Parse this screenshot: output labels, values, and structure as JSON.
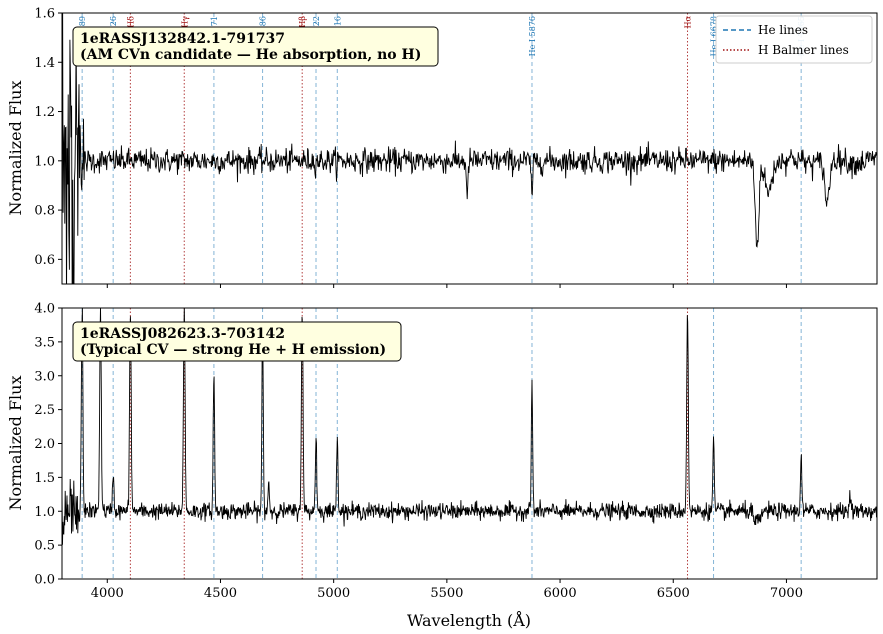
{
  "chart_data": [
    {
      "type": "line",
      "panel": "top",
      "title": "",
      "xlabel": "",
      "ylabel": "Normalized Flux",
      "xlim": [
        3800,
        7400
      ],
      "ylim": [
        0.5,
        1.6
      ],
      "yticks": [
        "0.6",
        "0.8",
        "1.0",
        "1.2",
        "1.4",
        "1.6"
      ],
      "ytick_values": [
        0.6,
        0.8,
        1.0,
        1.2,
        1.4,
        1.6
      ],
      "grid": false,
      "annotation": [
        "1eRASSJ132842.1-791737",
        "(AM CVn candidate — He absorption, no H)"
      ],
      "legend": {
        "placement": "top-right",
        "entries": [
          {
            "label": "He lines",
            "style": "dashed",
            "color": "#1f77b4"
          },
          {
            "label": "H Balmer lines",
            "style": "dotted",
            "color": "#a01010"
          }
        ]
      },
      "line_labels": [
        {
          "x": 3889,
          "text": "He I 3889",
          "kind": "He"
        },
        {
          "x": 4026,
          "text": "He I 4026",
          "kind": "He"
        },
        {
          "x": 4102,
          "text": "Hδ",
          "kind": "H"
        },
        {
          "x": 4340,
          "text": "Hγ",
          "kind": "H"
        },
        {
          "x": 4471,
          "text": "He I 4471",
          "kind": "He"
        },
        {
          "x": 4686,
          "text": "He II 4686",
          "kind": "He"
        },
        {
          "x": 4861,
          "text": "Hβ",
          "kind": "H"
        },
        {
          "x": 4922,
          "text": "He I 4922",
          "kind": "He"
        },
        {
          "x": 5016,
          "text": "He I 5016",
          "kind": "He"
        },
        {
          "x": 5876,
          "text": "He I 5876",
          "kind": "He"
        },
        {
          "x": 6563,
          "text": "Hα",
          "kind": "H"
        },
        {
          "x": 6678,
          "text": "He I 6678",
          "kind": "He"
        },
        {
          "x": 7065,
          "text": "He I 7065",
          "kind": "He"
        }
      ],
      "series": [
        {
          "style": "continuum ~1.0 with noise; absorption features",
          "noise_sd": 0.025,
          "features": [
            {
              "x": 5590,
              "depth": -0.18,
              "width": 3
            },
            {
              "x": 5876,
              "depth": -0.12,
              "width": 4
            },
            {
              "x": 6870,
              "depth": -0.35,
              "width": 8
            },
            {
              "x": 6920,
              "depth": -0.12,
              "width": 15
            },
            {
              "x": 7180,
              "depth": -0.18,
              "width": 10
            }
          ]
        }
      ]
    },
    {
      "type": "line",
      "panel": "bottom",
      "title": "",
      "xlabel": "Wavelength (Å)",
      "ylabel": "Normalized Flux",
      "xlim": [
        3800,
        7400
      ],
      "ylim": [
        0.0,
        4.0
      ],
      "xticks": [
        "4000",
        "4500",
        "5000",
        "5500",
        "6000",
        "6500",
        "7000"
      ],
      "xtick_values": [
        4000,
        4500,
        5000,
        5500,
        6000,
        6500,
        7000
      ],
      "yticks": [
        "0.0",
        "0.5",
        "1.0",
        "1.5",
        "2.0",
        "2.5",
        "3.0",
        "3.5",
        "4.0"
      ],
      "ytick_values": [
        0.0,
        0.5,
        1.0,
        1.5,
        2.0,
        2.5,
        3.0,
        3.5,
        4.0
      ],
      "grid": false,
      "annotation": [
        "1eRASSJ082623.3-703142",
        "(Typical CV — strong He + H emission)"
      ],
      "series": [
        {
          "style": "continuum ~1.0 with emission lines",
          "noise_sd": 0.06,
          "emission_lines": [
            {
              "x": 3889,
              "peak": 4.0
            },
            {
              "x": 3970,
              "peak": 4.0
            },
            {
              "x": 4026,
              "peak": 1.6
            },
            {
              "x": 4102,
              "peak": 4.0
            },
            {
              "x": 4340,
              "peak": 4.0
            },
            {
              "x": 4471,
              "peak": 3.1
            },
            {
              "x": 4686,
              "peak": 3.7
            },
            {
              "x": 4713,
              "peak": 1.45
            },
            {
              "x": 4861,
              "peak": 4.0
            },
            {
              "x": 4922,
              "peak": 2.15
            },
            {
              "x": 5016,
              "peak": 2.2
            },
            {
              "x": 5876,
              "peak": 2.9
            },
            {
              "x": 6563,
              "peak": 4.0
            },
            {
              "x": 6678,
              "peak": 2.05
            },
            {
              "x": 7065,
              "peak": 1.85
            },
            {
              "x": 7281,
              "peak": 1.35
            }
          ]
        }
      ]
    }
  ]
}
